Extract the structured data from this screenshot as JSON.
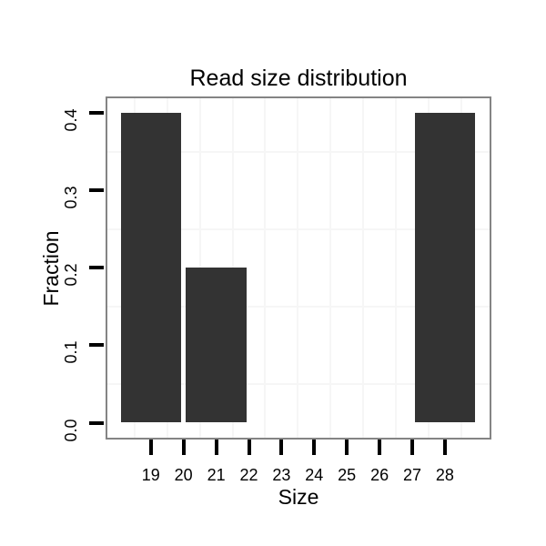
{
  "chart_data": {
    "type": "bar",
    "title": "Read size distribution",
    "xlabel": "Size",
    "ylabel": "Fraction",
    "bars": [
      {
        "x": 19,
        "fraction": 0.4
      },
      {
        "x": 21,
        "fraction": 0.2
      },
      {
        "x": 28,
        "fraction": 0.4
      }
    ],
    "bar_width_units": 1.85,
    "x_ticks": [
      19,
      20,
      21,
      22,
      23,
      24,
      25,
      26,
      27,
      28
    ],
    "y_ticks": [
      "0.0",
      "0.1",
      "0.2",
      "0.3",
      "0.4"
    ],
    "xlim": [
      17.5,
      29.5
    ],
    "ylim": [
      0,
      0.42
    ],
    "legend": "none",
    "grid": "faint minor gridlines only (half-unit x steps, 0.05 y steps)",
    "colors": {
      "bar": "#333333",
      "panel_border": "#848484",
      "gridline": "#f6f6f6",
      "tick": "#000000",
      "text": "#000000",
      "background": "#ffffff"
    }
  }
}
